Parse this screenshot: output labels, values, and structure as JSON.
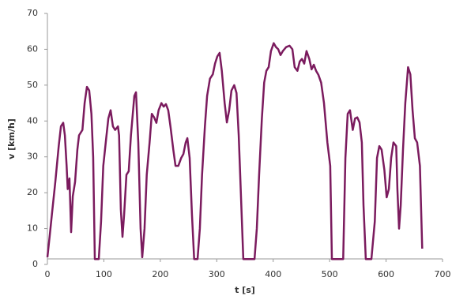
{
  "chart_data": {
    "type": "line",
    "x_label": "t [s]",
    "y_label": "v [km/h]",
    "xlim": [
      0,
      700
    ],
    "xticks": [
      0,
      100,
      200,
      300,
      400,
      500,
      600,
      700
    ],
    "ylim": [
      0,
      70
    ],
    "yticks": [
      0,
      10,
      20,
      30,
      40,
      50,
      60,
      70
    ],
    "grid": false,
    "series": [
      {
        "color": "#7b1b5e",
        "x": [
          0,
          4,
          8,
          14,
          20,
          24,
          28,
          31,
          34,
          36,
          39,
          42,
          45,
          49,
          53,
          56,
          62,
          66,
          70,
          74,
          78,
          81,
          84,
          91,
          95,
          99,
          104,
          108,
          112,
          116,
          120,
          125,
          127,
          130,
          133,
          136,
          140,
          144,
          148,
          154,
          157,
          161,
          165,
          168,
          172,
          176,
          181,
          185,
          189,
          193,
          197,
          202,
          206,
          210,
          214,
          218,
          223,
          227,
          232,
          237,
          241,
          245,
          248,
          252,
          256,
          260,
          266,
          270,
          274,
          279,
          283,
          288,
          293,
          297,
          301,
          305,
          309,
          314,
          318,
          322,
          326,
          331,
          335,
          339,
          343,
          347,
          367,
          371,
          375,
          380,
          384,
          388,
          392,
          396,
          401,
          405,
          409,
          413,
          417,
          423,
          429,
          434,
          438,
          443,
          447,
          451,
          455,
          459,
          464,
          468,
          472,
          476,
          480,
          485,
          490,
          496,
          501,
          504,
          524,
          528,
          532,
          536,
          541,
          545,
          549,
          553,
          557,
          560,
          564,
          574,
          580,
          584,
          588,
          592,
          597,
          601,
          605,
          609,
          613,
          618,
          620,
          623,
          626,
          630,
          634,
          639,
          643,
          647,
          651,
          655,
          660,
          664
        ],
        "values": [
          2,
          8,
          14,
          23,
          33,
          38.5,
          39.5,
          36,
          27.5,
          21,
          24,
          9,
          19,
          23,
          32,
          36,
          37.5,
          45,
          49.5,
          48.5,
          42,
          30,
          1.5,
          1.5,
          12,
          27.5,
          35,
          40.7,
          43,
          38.5,
          37.5,
          38.5,
          36,
          15.4,
          7.7,
          14,
          25,
          26,
          36,
          47,
          48,
          34,
          10,
          2,
          10,
          25,
          34,
          42,
          41,
          39.5,
          43,
          45,
          44,
          44.7,
          43,
          38.5,
          32,
          27.5,
          27.5,
          29.7,
          30.8,
          34,
          35.2,
          29.7,
          14,
          1.5,
          1.5,
          10,
          25,
          38.5,
          47,
          51.8,
          53,
          56,
          58,
          59,
          54,
          45,
          39.6,
          43,
          48.5,
          50,
          47.8,
          36,
          18.7,
          1.5,
          1.5,
          10,
          25,
          40.7,
          50.7,
          54,
          55,
          59.5,
          61.7,
          60.6,
          60,
          58.4,
          59.5,
          60.6,
          61,
          60,
          55,
          54,
          56.6,
          57.3,
          56,
          59.5,
          57.3,
          54.4,
          55.7,
          54,
          52.9,
          50.7,
          45,
          34,
          27.5,
          1.5,
          1.5,
          29.7,
          42,
          43,
          37.5,
          40.7,
          41,
          39.6,
          34,
          16.5,
          1.5,
          1.5,
          12,
          29.7,
          33,
          32,
          26.4,
          18.7,
          21,
          29.7,
          34,
          33,
          21,
          10,
          16.5,
          32,
          45,
          55,
          53,
          43,
          35.2,
          34,
          27.5,
          4.4
        ]
      }
    ]
  }
}
